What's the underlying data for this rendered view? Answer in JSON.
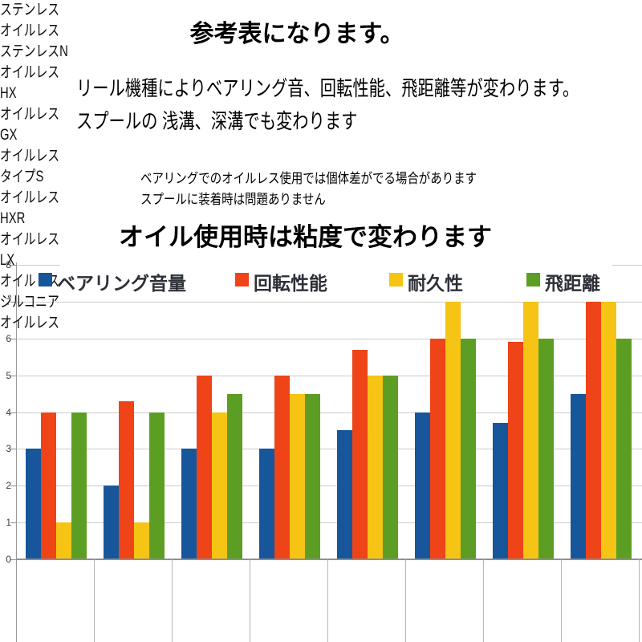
{
  "header": {
    "title": "参考表になります。",
    "line1": "リール機種によりベアリング音、回転性能、飛距離等が変わります。",
    "line2": "スプールの 浅溝、深溝でも変わります",
    "note1": "ベアリングでのオイルレス使用では個体差がでる場合があります",
    "note2": "スプールに装着時は問題ありません",
    "subtitle": "オイル使用時は粘度で変わります"
  },
  "chart_data": {
    "type": "bar",
    "title": "",
    "xlabel": "",
    "ylabel": "",
    "ylim": [
      0,
      8
    ],
    "yticks": [
      0,
      1,
      2,
      3,
      4,
      5,
      6,
      7,
      8
    ],
    "grid": true,
    "legend_position": "top",
    "categories": [
      {
        "line1": "ステンレス",
        "line2": "オイルレス"
      },
      {
        "line1": "ステンレスN",
        "line2": "オイルレス"
      },
      {
        "line1": "HX",
        "line2": "オイルレス"
      },
      {
        "line1": "GX",
        "line2": "オイルレス"
      },
      {
        "line1": "タイプS",
        "line2": "オイルレス"
      },
      {
        "line1": "HXR",
        "line2": "オイルレス"
      },
      {
        "line1": "LX",
        "line2": "オイルレス"
      },
      {
        "line1": "ジルコニア",
        "line2": "オイルレス"
      }
    ],
    "series": [
      {
        "key": "bearing-noise",
        "name": "ベアリング音量",
        "color": "#17569B",
        "values": [
          3,
          2,
          3,
          3,
          3.5,
          4,
          3.7,
          4.5
        ]
      },
      {
        "key": "rotation-performance",
        "name": "回転性能",
        "color": "#EF4318",
        "values": [
          4,
          4.3,
          5,
          5,
          5.7,
          6,
          5.9,
          7
        ]
      },
      {
        "key": "durability",
        "name": "耐久性",
        "color": "#F5C414",
        "values": [
          1,
          1,
          4,
          4.5,
          5,
          7,
          7,
          7
        ]
      },
      {
        "key": "casting-distance",
        "name": "飛距離",
        "color": "#5C9E24",
        "values": [
          4,
          4,
          4.5,
          4.5,
          5,
          6,
          6,
          6
        ]
      }
    ]
  }
}
